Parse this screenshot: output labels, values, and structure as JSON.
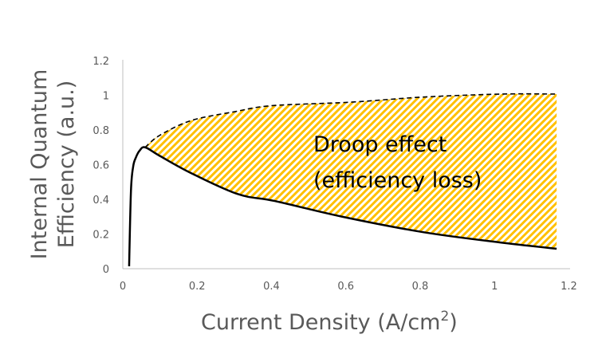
{
  "chart_data": {
    "type": "line",
    "title": "",
    "xlabel": "Current Density (A/cm",
    "xlabel_sup": "2",
    "xlabel_end": ")",
    "ylabel_line1": "Internal Quantum",
    "ylabel_line2": "Efficiency (a.u.)",
    "xlim": [
      0,
      1.2
    ],
    "ylim": [
      0,
      1.2
    ],
    "xticks": [
      "0",
      "0.2",
      "0.4",
      "0.6",
      "0.8",
      "1",
      "1.2"
    ],
    "yticks": [
      "0",
      "0.2",
      "0.4",
      "0.6",
      "0.8",
      "1",
      "1.2"
    ],
    "grid": false,
    "series": [
      {
        "style": "solid",
        "color": "#000000",
        "x": [
          0.017,
          0.022,
          0.028,
          0.035,
          0.045,
          0.06,
          0.1,
          0.185,
          0.31,
          0.41,
          0.59,
          0.81,
          1.02,
          1.167
        ],
        "y": [
          0.014,
          0.45,
          0.59,
          0.64,
          0.68,
          0.7,
          0.65,
          0.55,
          0.43,
          0.39,
          0.3,
          0.21,
          0.15,
          0.115
        ]
      },
      {
        "style": "dashed",
        "color": "#000000",
        "x": [
          0.06,
          0.1,
          0.185,
          0.3,
          0.4,
          0.61,
          0.81,
          1.02,
          1.167
        ],
        "y": [
          0.7,
          0.77,
          0.855,
          0.905,
          0.94,
          0.96,
          0.99,
          1.007,
          1.007
        ]
      }
    ],
    "fill_between": {
      "color": "#FFC000",
      "pattern": "diagonal-hatch"
    },
    "annotation": {
      "line1": "Droop effect",
      "line2": "(efficiency loss)"
    }
  }
}
